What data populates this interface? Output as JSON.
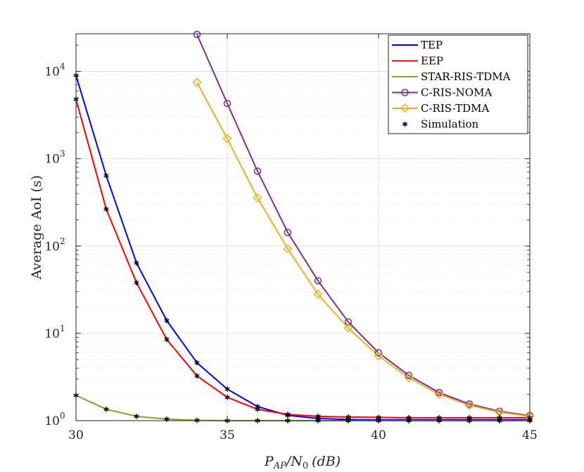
{
  "chart_data": {
    "type": "line",
    "yscale": "log",
    "xlabel": "P_{AP}/N_0 (dB)",
    "xlabel_main": "P",
    "xlabel_sub": "AP",
    "xlabel_mid": "/N",
    "xlabel_sub2": "0",
    "xlabel_unit": "(dB)",
    "ylabel": "Average AoI (s)",
    "xlim": [
      30,
      45
    ],
    "ylim": [
      1,
      27000
    ],
    "x_ticks": [
      30,
      35,
      40,
      45
    ],
    "x_tick_labels": [
      "30",
      "35",
      "40",
      "45"
    ],
    "y_ticks": [
      1,
      10,
      100,
      1000,
      10000
    ],
    "y_tick_labels": [
      {
        "base": "10",
        "exp": "0"
      },
      {
        "base": "10",
        "exp": "1"
      },
      {
        "base": "10",
        "exp": "2"
      },
      {
        "base": "10",
        "exp": "3"
      },
      {
        "base": "10",
        "exp": "4"
      }
    ],
    "grid": true,
    "legend_position": "top-right",
    "series": [
      {
        "name": "TEP",
        "color": "#0000ff",
        "marker": "none",
        "x": [
          30,
          31,
          32,
          33,
          34,
          35,
          36,
          37,
          38,
          39,
          40,
          41,
          42,
          43,
          44,
          45
        ],
        "values": [
          9000,
          640,
          64,
          14,
          4.6,
          2.3,
          1.45,
          1.15,
          1.06,
          1.03,
          1.02,
          1.02,
          1.02,
          1.02,
          1.02,
          1.02
        ]
      },
      {
        "name": "EEP",
        "color": "#ff0000",
        "marker": "none",
        "x": [
          30,
          31,
          32,
          33,
          34,
          35,
          36,
          37,
          38,
          39,
          40,
          41,
          42,
          43,
          44,
          45
        ],
        "values": [
          4800,
          265,
          38,
          8.5,
          3.25,
          1.85,
          1.35,
          1.18,
          1.12,
          1.1,
          1.09,
          1.08,
          1.08,
          1.08,
          1.08,
          1.08
        ]
      },
      {
        "name": "STAR-RIS-TDMA",
        "color": "#77ac30",
        "marker": "none",
        "x": [
          30,
          31,
          32,
          33,
          34,
          35,
          36,
          37,
          38,
          39,
          40,
          41,
          42,
          43,
          44,
          45
        ],
        "values": [
          1.95,
          1.35,
          1.12,
          1.04,
          1.01,
          1.0,
          1.0,
          1.0,
          1.0,
          1.0,
          1.0,
          1.0,
          1.0,
          1.0,
          1.0,
          1.0
        ]
      },
      {
        "name": "C-RIS-NOMA",
        "color": "#7e2f8e",
        "marker": "circle",
        "x": [
          34,
          35,
          36,
          37,
          38,
          39,
          40,
          41,
          42,
          43,
          44,
          45
        ],
        "values": [
          26500,
          4300,
          720,
          143,
          40,
          13.5,
          6.0,
          3.3,
          2.1,
          1.55,
          1.28,
          1.14
        ]
      },
      {
        "name": "C-RIS-TDMA",
        "color": "#edb120",
        "marker": "diamond",
        "x": [
          34,
          35,
          36,
          37,
          38,
          39,
          40,
          41,
          42,
          43,
          44,
          45
        ],
        "values": [
          7500,
          1700,
          355,
          93,
          28,
          11.5,
          5.5,
          3.1,
          2.0,
          1.5,
          1.25,
          1.12
        ]
      }
    ],
    "simulation": {
      "name": "Simulation",
      "color": "#000000",
      "marker": "asterisk",
      "points": [
        {
          "x": 30,
          "y": 9000
        },
        {
          "x": 31,
          "y": 640
        },
        {
          "x": 32,
          "y": 64
        },
        {
          "x": 33,
          "y": 14
        },
        {
          "x": 34,
          "y": 4.6
        },
        {
          "x": 35,
          "y": 2.3
        },
        {
          "x": 36,
          "y": 1.45
        },
        {
          "x": 37,
          "y": 1.15
        },
        {
          "x": 38,
          "y": 1.06
        },
        {
          "x": 39,
          "y": 1.03
        },
        {
          "x": 40,
          "y": 1.02
        },
        {
          "x": 41,
          "y": 1.02
        },
        {
          "x": 42,
          "y": 1.02
        },
        {
          "x": 43,
          "y": 1.02
        },
        {
          "x": 44,
          "y": 1.02
        },
        {
          "x": 45,
          "y": 1.02
        },
        {
          "x": 30,
          "y": 4800
        },
        {
          "x": 31,
          "y": 265
        },
        {
          "x": 32,
          "y": 38
        },
        {
          "x": 33,
          "y": 8.5
        },
        {
          "x": 34,
          "y": 3.25
        },
        {
          "x": 35,
          "y": 1.85
        },
        {
          "x": 36,
          "y": 1.35
        },
        {
          "x": 37,
          "y": 1.18
        },
        {
          "x": 38,
          "y": 1.12
        },
        {
          "x": 39,
          "y": 1.1
        },
        {
          "x": 40,
          "y": 1.09
        },
        {
          "x": 41,
          "y": 1.08
        },
        {
          "x": 42,
          "y": 1.08
        },
        {
          "x": 43,
          "y": 1.08
        },
        {
          "x": 44,
          "y": 1.08
        },
        {
          "x": 45,
          "y": 1.08
        },
        {
          "x": 30,
          "y": 1.95
        },
        {
          "x": 31,
          "y": 1.35
        },
        {
          "x": 32,
          "y": 1.12
        },
        {
          "x": 33,
          "y": 1.04
        },
        {
          "x": 34,
          "y": 1.01
        },
        {
          "x": 35,
          "y": 1.0
        },
        {
          "x": 36,
          "y": 1.0
        },
        {
          "x": 37,
          "y": 1.0
        },
        {
          "x": 38,
          "y": 1.0
        },
        {
          "x": 39,
          "y": 1.0
        },
        {
          "x": 40,
          "y": 1.0
        },
        {
          "x": 41,
          "y": 1.0
        },
        {
          "x": 42,
          "y": 1.0
        },
        {
          "x": 43,
          "y": 1.0
        },
        {
          "x": 44,
          "y": 1.0
        },
        {
          "x": 45,
          "y": 1.0
        }
      ]
    }
  }
}
